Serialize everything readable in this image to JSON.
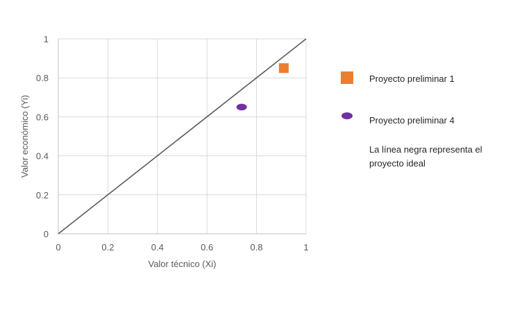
{
  "chart_data": {
    "type": "scatter",
    "xlabel": "Valor técnico (Xi)",
    "ylabel": "Valor económico (Yi)",
    "xlim": [
      0,
      1
    ],
    "ylim": [
      0,
      1
    ],
    "x_ticks": [
      "0",
      "0.2",
      "0.4",
      "0.6",
      "0.8",
      "1"
    ],
    "y_ticks": [
      "0",
      "0.2",
      "0.4",
      "0.6",
      "0.8",
      "1"
    ],
    "grid": true,
    "legend_position": "right",
    "series": [
      {
        "name": "Proyecto preliminar 1",
        "marker": "square",
        "color": "#ED7D31",
        "points": [
          [
            0.91,
            0.85
          ]
        ]
      },
      {
        "name": "Proyecto preliminar 4",
        "marker": "ellipse",
        "color": "#7030A0",
        "points": [
          [
            0.74,
            0.65
          ]
        ]
      }
    ],
    "reference_line": {
      "from": [
        0,
        0
      ],
      "to": [
        1,
        1
      ],
      "color": "#595959"
    },
    "note": "La línea negra representa el proyecto ideal"
  }
}
